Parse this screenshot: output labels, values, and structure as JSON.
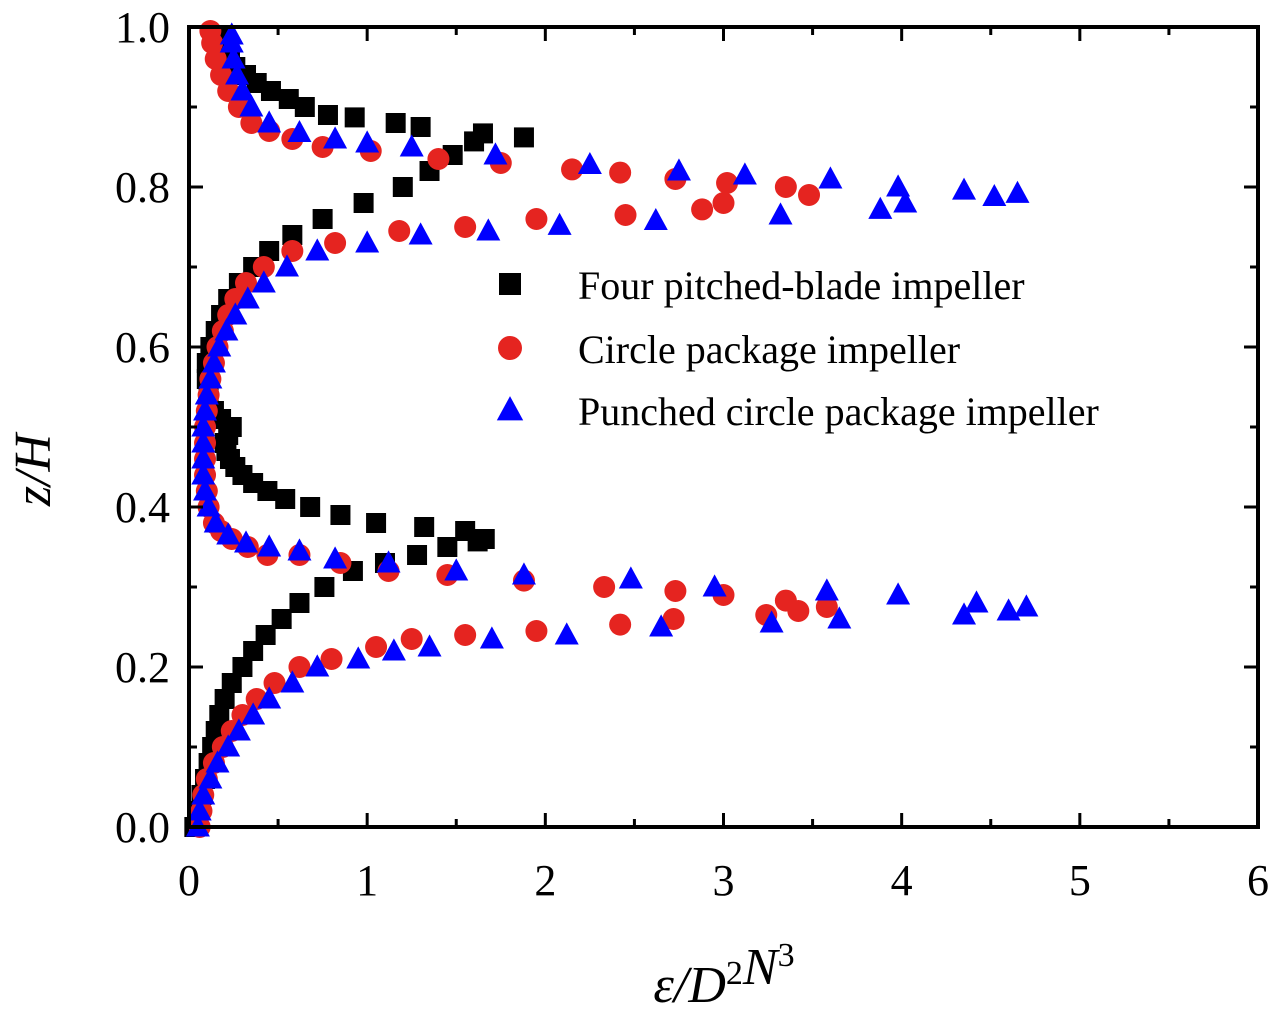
{
  "chart_data": {
    "type": "scatter",
    "xlabel": "ε/D²N³",
    "ylabel": "z/H",
    "xlim": [
      0,
      6
    ],
    "ylim": [
      0,
      1.0
    ],
    "x_ticks": [
      "0",
      "1",
      "2",
      "3",
      "4",
      "5",
      "6"
    ],
    "y_ticks": [
      "0.0",
      "0.2",
      "0.4",
      "0.6",
      "0.8",
      "1.0"
    ],
    "legend_position": "center-right",
    "grid": false,
    "series": [
      {
        "name": "Four pitched-blade impeller",
        "marker": "square",
        "color": "#000000",
        "points": [
          [
            0.03,
            0.0
          ],
          [
            0.05,
            0.02
          ],
          [
            0.07,
            0.04
          ],
          [
            0.09,
            0.06
          ],
          [
            0.11,
            0.08
          ],
          [
            0.13,
            0.1
          ],
          [
            0.15,
            0.12
          ],
          [
            0.17,
            0.14
          ],
          [
            0.2,
            0.16
          ],
          [
            0.24,
            0.18
          ],
          [
            0.3,
            0.2
          ],
          [
            0.36,
            0.22
          ],
          [
            0.43,
            0.24
          ],
          [
            0.52,
            0.26
          ],
          [
            0.62,
            0.28
          ],
          [
            0.76,
            0.3
          ],
          [
            0.92,
            0.32
          ],
          [
            1.1,
            0.33
          ],
          [
            1.28,
            0.34
          ],
          [
            1.45,
            0.35
          ],
          [
            1.62,
            0.357
          ],
          [
            1.66,
            0.36
          ],
          [
            1.55,
            0.37
          ],
          [
            1.32,
            0.375
          ],
          [
            1.05,
            0.38
          ],
          [
            0.85,
            0.39
          ],
          [
            0.68,
            0.4
          ],
          [
            0.54,
            0.41
          ],
          [
            0.44,
            0.42
          ],
          [
            0.36,
            0.43
          ],
          [
            0.3,
            0.44
          ],
          [
            0.26,
            0.45
          ],
          [
            0.23,
            0.46
          ],
          [
            0.21,
            0.47
          ],
          [
            0.2,
            0.48
          ],
          [
            0.22,
            0.49
          ],
          [
            0.24,
            0.5
          ],
          [
            0.18,
            0.51
          ],
          [
            0.14,
            0.52
          ],
          [
            0.11,
            0.54
          ],
          [
            0.1,
            0.56
          ],
          [
            0.1,
            0.58
          ],
          [
            0.12,
            0.6
          ],
          [
            0.15,
            0.62
          ],
          [
            0.18,
            0.64
          ],
          [
            0.22,
            0.66
          ],
          [
            0.28,
            0.68
          ],
          [
            0.36,
            0.7
          ],
          [
            0.45,
            0.72
          ],
          [
            0.58,
            0.74
          ],
          [
            0.75,
            0.76
          ],
          [
            0.98,
            0.78
          ],
          [
            1.2,
            0.8
          ],
          [
            1.35,
            0.82
          ],
          [
            1.48,
            0.84
          ],
          [
            1.6,
            0.857
          ],
          [
            1.65,
            0.867
          ],
          [
            1.88,
            0.862
          ],
          [
            1.3,
            0.875
          ],
          [
            1.16,
            0.88
          ],
          [
            0.93,
            0.887
          ],
          [
            0.78,
            0.89
          ],
          [
            0.65,
            0.9
          ],
          [
            0.56,
            0.91
          ],
          [
            0.46,
            0.92
          ],
          [
            0.38,
            0.93
          ],
          [
            0.32,
            0.94
          ],
          [
            0.26,
            0.95
          ],
          [
            0.23,
            0.96
          ],
          [
            0.21,
            0.97
          ],
          [
            0.2,
            0.98
          ],
          [
            0.19,
            0.99
          ]
        ]
      },
      {
        "name": "Circle package impeller",
        "marker": "circle",
        "color": "#e52420",
        "points": [
          [
            0.06,
            0.0
          ],
          [
            0.07,
            0.02
          ],
          [
            0.08,
            0.04
          ],
          [
            0.1,
            0.06
          ],
          [
            0.14,
            0.08
          ],
          [
            0.19,
            0.1
          ],
          [
            0.24,
            0.12
          ],
          [
            0.3,
            0.14
          ],
          [
            0.38,
            0.16
          ],
          [
            0.48,
            0.18
          ],
          [
            0.62,
            0.2
          ],
          [
            0.8,
            0.21
          ],
          [
            1.05,
            0.225
          ],
          [
            1.25,
            0.235
          ],
          [
            1.55,
            0.24
          ],
          [
            1.95,
            0.245
          ],
          [
            2.42,
            0.253
          ],
          [
            2.72,
            0.26
          ],
          [
            3.24,
            0.265
          ],
          [
            3.42,
            0.27
          ],
          [
            3.58,
            0.275
          ],
          [
            3.35,
            0.283
          ],
          [
            3.0,
            0.29
          ],
          [
            2.73,
            0.295
          ],
          [
            2.33,
            0.3
          ],
          [
            1.88,
            0.308
          ],
          [
            1.45,
            0.315
          ],
          [
            1.12,
            0.32
          ],
          [
            0.85,
            0.33
          ],
          [
            0.62,
            0.34
          ],
          [
            0.44,
            0.34
          ],
          [
            0.33,
            0.35
          ],
          [
            0.24,
            0.36
          ],
          [
            0.18,
            0.37
          ],
          [
            0.14,
            0.38
          ],
          [
            0.11,
            0.4
          ],
          [
            0.1,
            0.42
          ],
          [
            0.09,
            0.44
          ],
          [
            0.09,
            0.46
          ],
          [
            0.09,
            0.48
          ],
          [
            0.09,
            0.5
          ],
          [
            0.1,
            0.52
          ],
          [
            0.11,
            0.54
          ],
          [
            0.12,
            0.56
          ],
          [
            0.14,
            0.58
          ],
          [
            0.16,
            0.6
          ],
          [
            0.19,
            0.62
          ],
          [
            0.22,
            0.64
          ],
          [
            0.26,
            0.66
          ],
          [
            0.32,
            0.68
          ],
          [
            0.42,
            0.7
          ],
          [
            0.58,
            0.72
          ],
          [
            0.82,
            0.73
          ],
          [
            1.18,
            0.745
          ],
          [
            1.55,
            0.75
          ],
          [
            1.95,
            0.76
          ],
          [
            2.45,
            0.765
          ],
          [
            2.88,
            0.772
          ],
          [
            3.0,
            0.78
          ],
          [
            3.48,
            0.79
          ],
          [
            3.35,
            0.8
          ],
          [
            3.02,
            0.805
          ],
          [
            2.73,
            0.81
          ],
          [
            2.42,
            0.818
          ],
          [
            2.15,
            0.822
          ],
          [
            1.75,
            0.83
          ],
          [
            1.4,
            0.835
          ],
          [
            1.02,
            0.845
          ],
          [
            0.75,
            0.85
          ],
          [
            0.58,
            0.86
          ],
          [
            0.45,
            0.87
          ],
          [
            0.35,
            0.88
          ],
          [
            0.28,
            0.9
          ],
          [
            0.22,
            0.92
          ],
          [
            0.18,
            0.94
          ],
          [
            0.15,
            0.96
          ],
          [
            0.13,
            0.98
          ],
          [
            0.12,
            0.995
          ]
        ]
      },
      {
        "name": "Punched circle package impeller",
        "marker": "triangle",
        "color": "#0000ff",
        "points": [
          [
            0.05,
            0.0
          ],
          [
            0.06,
            0.02
          ],
          [
            0.08,
            0.04
          ],
          [
            0.12,
            0.06
          ],
          [
            0.16,
            0.08
          ],
          [
            0.22,
            0.1
          ],
          [
            0.28,
            0.12
          ],
          [
            0.36,
            0.14
          ],
          [
            0.45,
            0.16
          ],
          [
            0.58,
            0.18
          ],
          [
            0.72,
            0.2
          ],
          [
            0.95,
            0.21
          ],
          [
            1.15,
            0.22
          ],
          [
            1.35,
            0.225
          ],
          [
            1.7,
            0.235
          ],
          [
            2.12,
            0.24
          ],
          [
            2.65,
            0.25
          ],
          [
            3.27,
            0.255
          ],
          [
            3.65,
            0.26
          ],
          [
            4.35,
            0.265
          ],
          [
            4.6,
            0.27
          ],
          [
            4.7,
            0.275
          ],
          [
            4.42,
            0.28
          ],
          [
            3.98,
            0.29
          ],
          [
            3.58,
            0.295
          ],
          [
            2.95,
            0.3
          ],
          [
            2.48,
            0.31
          ],
          [
            1.88,
            0.315
          ],
          [
            1.5,
            0.32
          ],
          [
            1.12,
            0.33
          ],
          [
            0.82,
            0.335
          ],
          [
            0.62,
            0.345
          ],
          [
            0.45,
            0.35
          ],
          [
            0.32,
            0.355
          ],
          [
            0.22,
            0.365
          ],
          [
            0.15,
            0.38
          ],
          [
            0.11,
            0.4
          ],
          [
            0.09,
            0.42
          ],
          [
            0.08,
            0.44
          ],
          [
            0.08,
            0.46
          ],
          [
            0.08,
            0.48
          ],
          [
            0.08,
            0.5
          ],
          [
            0.09,
            0.52
          ],
          [
            0.1,
            0.54
          ],
          [
            0.12,
            0.56
          ],
          [
            0.14,
            0.58
          ],
          [
            0.17,
            0.6
          ],
          [
            0.21,
            0.62
          ],
          [
            0.26,
            0.64
          ],
          [
            0.33,
            0.66
          ],
          [
            0.42,
            0.68
          ],
          [
            0.55,
            0.7
          ],
          [
            0.72,
            0.72
          ],
          [
            1.0,
            0.73
          ],
          [
            1.3,
            0.74
          ],
          [
            1.68,
            0.745
          ],
          [
            2.08,
            0.752
          ],
          [
            2.62,
            0.758
          ],
          [
            3.32,
            0.765
          ],
          [
            3.88,
            0.772
          ],
          [
            4.02,
            0.78
          ],
          [
            4.52,
            0.788
          ],
          [
            4.65,
            0.792
          ],
          [
            4.35,
            0.796
          ],
          [
            3.98,
            0.8
          ],
          [
            3.6,
            0.81
          ],
          [
            3.12,
            0.815
          ],
          [
            2.75,
            0.82
          ],
          [
            2.25,
            0.828
          ],
          [
            1.72,
            0.84
          ],
          [
            1.25,
            0.85
          ],
          [
            1.0,
            0.855
          ],
          [
            0.82,
            0.86
          ],
          [
            0.62,
            0.868
          ],
          [
            0.45,
            0.88
          ],
          [
            0.35,
            0.9
          ],
          [
            0.3,
            0.92
          ],
          [
            0.27,
            0.94
          ],
          [
            0.25,
            0.96
          ],
          [
            0.24,
            0.98
          ],
          [
            0.24,
            0.99
          ]
        ]
      }
    ]
  }
}
